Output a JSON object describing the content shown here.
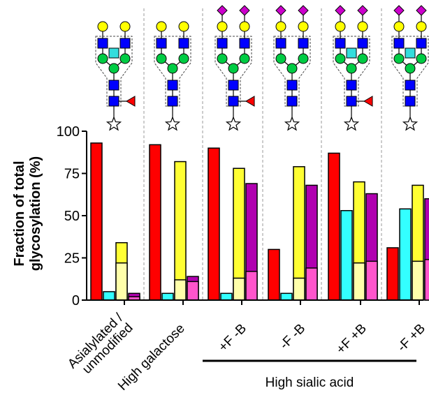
{
  "chart_data": {
    "type": "bar",
    "ylabel_line1": "Fraction of total",
    "ylabel_line2": "glycosylation (%)",
    "ylim": [
      0,
      100
    ],
    "yticks": [
      "0",
      "25",
      "50",
      "75",
      "100"
    ],
    "categories": [
      [
        "Asialylated /",
        "unmodified"
      ],
      [
        "High galactose"
      ],
      [
        "+F -B"
      ],
      [
        "-F -B"
      ],
      [
        "+F +B"
      ],
      [
        "-F +B"
      ]
    ],
    "group_label": "High sialic acid",
    "series": [
      {
        "color": "#ff0000",
        "values": [
          93,
          92,
          90,
          30,
          87,
          31
        ]
      },
      {
        "color": "#33ffff",
        "values": [
          5,
          4,
          4,
          4,
          53,
          54
        ]
      },
      {
        "color": "#ffff33",
        "values": [
          34,
          82,
          78,
          79,
          70,
          68
        ],
        "lower": [
          22,
          12,
          13,
          13,
          22,
          23
        ],
        "lower_color": "#ffffaa"
      },
      {
        "color": "#b000b0",
        "values": [
          4,
          14,
          69,
          68,
          63,
          60
        ],
        "lower": [
          2,
          11,
          17,
          19,
          23,
          24
        ],
        "lower_color": "#ff55cc"
      }
    ],
    "grid": false
  },
  "glycan_icons": [
    {
      "fucose": true,
      "bisect": true,
      "sialic": false
    },
    {
      "fucose": false,
      "bisect": false,
      "sialic": false
    },
    {
      "fucose": true,
      "bisect": false,
      "sialic": true
    },
    {
      "fucose": false,
      "bisect": false,
      "sialic": true
    },
    {
      "fucose": true,
      "bisect": true,
      "sialic": true
    },
    {
      "fucose": false,
      "bisect": true,
      "sialic": true
    }
  ],
  "colors": {
    "glcnac": "#0000ff",
    "mannose": "#00cc44",
    "galactose": "#ffff00",
    "sialic": "#cc00cc",
    "fucose": "#ff0000",
    "bisect_glcnac": "#33dddd"
  }
}
